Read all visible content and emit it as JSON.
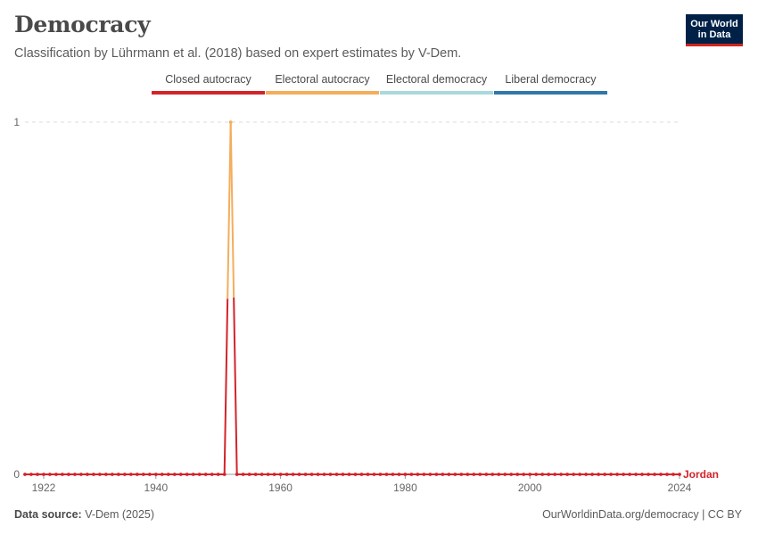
{
  "header": {
    "title": "Democracy",
    "subtitle": "Classification by Lührmann et al. (2018) based on expert estimates by V-Dem."
  },
  "logo": {
    "line1": "Our World",
    "line2": "in Data"
  },
  "legend": [
    {
      "label": "Closed autocracy",
      "color": "#d3232a"
    },
    {
      "label": "Electoral autocracy",
      "color": "#f4ad5c"
    },
    {
      "label": "Electoral democracy",
      "color": "#a8dadc"
    },
    {
      "label": "Liberal democracy",
      "color": "#3077a8"
    }
  ],
  "footer": {
    "source_label": "Data source:",
    "source_value": "V-Dem (2025)",
    "right": "OurWorldinData.org/democracy | CC BY"
  },
  "chart_data": {
    "type": "line",
    "title": "Democracy",
    "xlabel": "",
    "ylabel": "",
    "xlim": [
      1919,
      2024
    ],
    "ylim": [
      0,
      1
    ],
    "x_ticks": [
      "1922",
      "1940",
      "1960",
      "1980",
      "2000",
      "2024"
    ],
    "y_ticks": [
      "0",
      "1"
    ],
    "grid": true,
    "series": [
      {
        "name": "Jordan",
        "color": "#d3232a",
        "points": [
          {
            "x": 1919,
            "y": 0
          },
          {
            "x": 1920,
            "y": 0
          },
          {
            "x": 1921,
            "y": 0
          },
          {
            "x": 1922,
            "y": 0
          },
          {
            "x": 1923,
            "y": 0
          },
          {
            "x": 1924,
            "y": 0
          },
          {
            "x": 1925,
            "y": 0
          },
          {
            "x": 1926,
            "y": 0
          },
          {
            "x": 1927,
            "y": 0
          },
          {
            "x": 1928,
            "y": 0
          },
          {
            "x": 1929,
            "y": 0
          },
          {
            "x": 1930,
            "y": 0
          },
          {
            "x": 1931,
            "y": 0
          },
          {
            "x": 1932,
            "y": 0
          },
          {
            "x": 1933,
            "y": 0
          },
          {
            "x": 1934,
            "y": 0
          },
          {
            "x": 1935,
            "y": 0
          },
          {
            "x": 1936,
            "y": 0
          },
          {
            "x": 1937,
            "y": 0
          },
          {
            "x": 1938,
            "y": 0
          },
          {
            "x": 1939,
            "y": 0
          },
          {
            "x": 1940,
            "y": 0
          },
          {
            "x": 1941,
            "y": 0
          },
          {
            "x": 1942,
            "y": 0
          },
          {
            "x": 1943,
            "y": 0
          },
          {
            "x": 1944,
            "y": 0
          },
          {
            "x": 1945,
            "y": 0
          },
          {
            "x": 1946,
            "y": 0
          },
          {
            "x": 1947,
            "y": 0
          },
          {
            "x": 1948,
            "y": 0
          },
          {
            "x": 1949,
            "y": 0
          },
          {
            "x": 1950,
            "y": 0
          },
          {
            "x": 1951,
            "y": 0
          },
          {
            "x": 1952,
            "y": 1
          },
          {
            "x": 1953,
            "y": 0
          },
          {
            "x": 1954,
            "y": 0
          },
          {
            "x": 1955,
            "y": 0
          },
          {
            "x": 1956,
            "y": 0
          },
          {
            "x": 1957,
            "y": 0
          },
          {
            "x": 1958,
            "y": 0
          },
          {
            "x": 1959,
            "y": 0
          },
          {
            "x": 1960,
            "y": 0
          },
          {
            "x": 1961,
            "y": 0
          },
          {
            "x": 1962,
            "y": 0
          },
          {
            "x": 1963,
            "y": 0
          },
          {
            "x": 1964,
            "y": 0
          },
          {
            "x": 1965,
            "y": 0
          },
          {
            "x": 1966,
            "y": 0
          },
          {
            "x": 1967,
            "y": 0
          },
          {
            "x": 1968,
            "y": 0
          },
          {
            "x": 1969,
            "y": 0
          },
          {
            "x": 1970,
            "y": 0
          },
          {
            "x": 1971,
            "y": 0
          },
          {
            "x": 1972,
            "y": 0
          },
          {
            "x": 1973,
            "y": 0
          },
          {
            "x": 1974,
            "y": 0
          },
          {
            "x": 1975,
            "y": 0
          },
          {
            "x": 1976,
            "y": 0
          },
          {
            "x": 1977,
            "y": 0
          },
          {
            "x": 1978,
            "y": 0
          },
          {
            "x": 1979,
            "y": 0
          },
          {
            "x": 1980,
            "y": 0
          },
          {
            "x": 1981,
            "y": 0
          },
          {
            "x": 1982,
            "y": 0
          },
          {
            "x": 1983,
            "y": 0
          },
          {
            "x": 1984,
            "y": 0
          },
          {
            "x": 1985,
            "y": 0
          },
          {
            "x": 1986,
            "y": 0
          },
          {
            "x": 1987,
            "y": 0
          },
          {
            "x": 1988,
            "y": 0
          },
          {
            "x": 1989,
            "y": 0
          },
          {
            "x": 1990,
            "y": 0
          },
          {
            "x": 1991,
            "y": 0
          },
          {
            "x": 1992,
            "y": 0
          },
          {
            "x": 1993,
            "y": 0
          },
          {
            "x": 1994,
            "y": 0
          },
          {
            "x": 1995,
            "y": 0
          },
          {
            "x": 1996,
            "y": 0
          },
          {
            "x": 1997,
            "y": 0
          },
          {
            "x": 1998,
            "y": 0
          },
          {
            "x": 1999,
            "y": 0
          },
          {
            "x": 2000,
            "y": 0
          },
          {
            "x": 2001,
            "y": 0
          },
          {
            "x": 2002,
            "y": 0
          },
          {
            "x": 2003,
            "y": 0
          },
          {
            "x": 2004,
            "y": 0
          },
          {
            "x": 2005,
            "y": 0
          },
          {
            "x": 2006,
            "y": 0
          },
          {
            "x": 2007,
            "y": 0
          },
          {
            "x": 2008,
            "y": 0
          },
          {
            "x": 2009,
            "y": 0
          },
          {
            "x": 2010,
            "y": 0
          },
          {
            "x": 2011,
            "y": 0
          },
          {
            "x": 2012,
            "y": 0
          },
          {
            "x": 2013,
            "y": 0
          },
          {
            "x": 2014,
            "y": 0
          },
          {
            "x": 2015,
            "y": 0
          },
          {
            "x": 2016,
            "y": 0
          },
          {
            "x": 2017,
            "y": 0
          },
          {
            "x": 2018,
            "y": 0
          },
          {
            "x": 2019,
            "y": 0
          },
          {
            "x": 2020,
            "y": 0
          },
          {
            "x": 2021,
            "y": 0
          },
          {
            "x": 2022,
            "y": 0
          },
          {
            "x": 2023,
            "y": 0
          },
          {
            "x": 2024,
            "y": 0
          }
        ],
        "category_colors": {
          "1952": "#f4ad5c"
        }
      }
    ]
  }
}
